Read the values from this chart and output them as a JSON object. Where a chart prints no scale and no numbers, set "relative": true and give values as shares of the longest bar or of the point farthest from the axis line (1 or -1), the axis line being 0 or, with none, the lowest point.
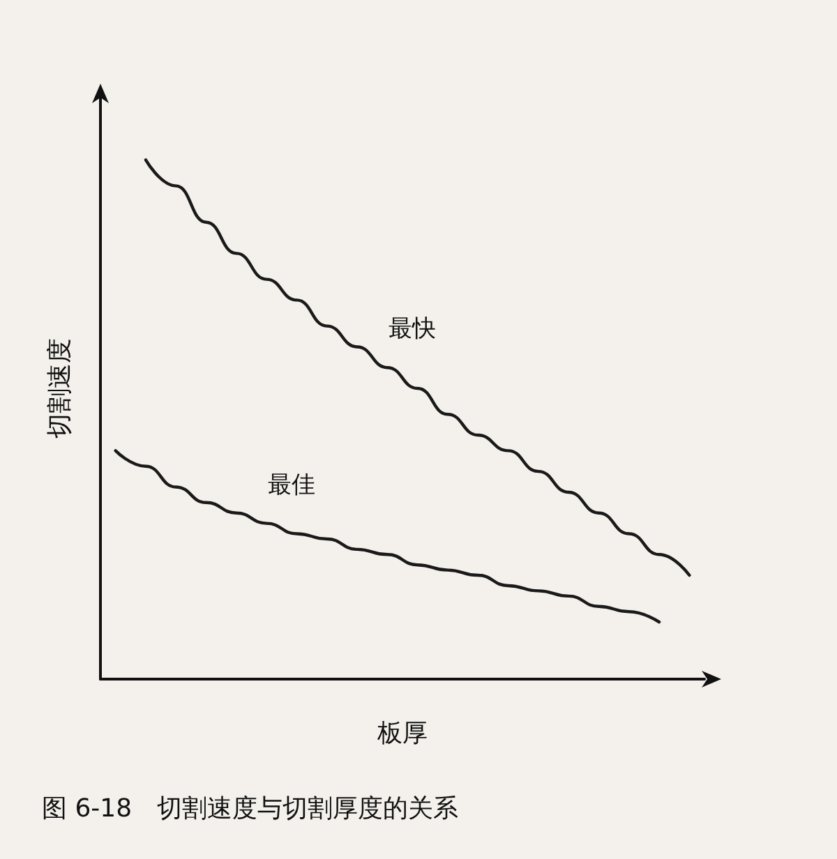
{
  "chart_data": {
    "type": "line",
    "relative": true,
    "xlabel": "板厚",
    "ylabel": "切割速度",
    "annotations": [
      "图 6-18　切割速度与切割厚度的关系"
    ],
    "categories": [
      null,
      null,
      null,
      null,
      null,
      null,
      null,
      null,
      null,
      null,
      null,
      null,
      null,
      null,
      null,
      null,
      null,
      null,
      null,
      null
    ],
    "series": [
      {
        "name": "最快",
        "color": "#1a1a1a",
        "values": [
          null,
          1,
          0.95,
          0.88,
          0.82,
          0.77,
          0.73,
          0.68,
          0.64,
          0.6,
          0.56,
          0.51,
          0.47,
          0.44,
          0.4,
          0.36,
          0.32,
          0.28,
          0.24,
          0.2
        ]
      },
      {
        "name": "最佳",
        "color": "#1a1a1a",
        "values": [
          0.44,
          0.41,
          0.37,
          0.34,
          0.32,
          0.3,
          0.28,
          0.27,
          0.25,
          0.24,
          0.22,
          0.21,
          0.2,
          0.18,
          0.17,
          0.16,
          0.14,
          0.13,
          0.11,
          null
        ]
      }
    ],
    "marker": "none",
    "line_style": "solid",
    "grid": false,
    "legend": false
  }
}
